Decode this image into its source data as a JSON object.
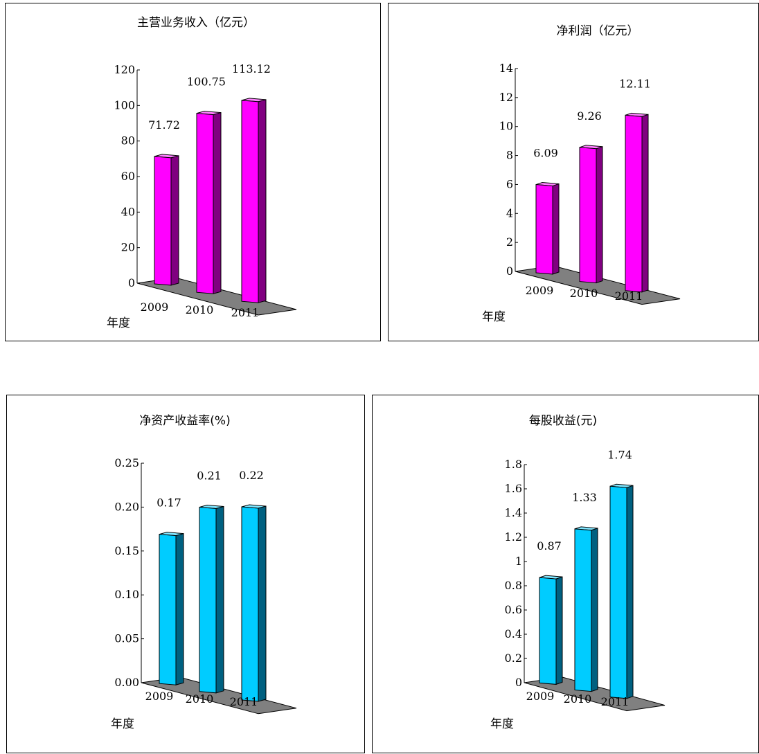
{
  "chart_data": [
    {
      "type": "bar",
      "title": "主营业务收入（亿元）",
      "xlabel": "年度",
      "ylabel": "",
      "categories": [
        "2009",
        "2010",
        "2011"
      ],
      "values": [
        71.72,
        100.75,
        113.12
      ],
      "value_labels": [
        "71.72",
        "100.75",
        "113.12"
      ],
      "ylim": [
        0,
        120
      ],
      "yticks": [
        0,
        20,
        40,
        60,
        80,
        100,
        120
      ],
      "ytick_labels": [
        "0",
        "20",
        "40",
        "60",
        "80",
        "100",
        "120"
      ],
      "grid": false,
      "three_d": true,
      "colors": {
        "front": "#ff00ff",
        "side": "#800080",
        "top": "#ff80ff"
      }
    },
    {
      "type": "bar",
      "title": "净利润（亿元）",
      "xlabel": "年度",
      "ylabel": "",
      "categories": [
        "2009",
        "2010",
        "2011"
      ],
      "values": [
        6.09,
        9.26,
        12.11
      ],
      "value_labels": [
        "6.09",
        "9.26",
        "12.11"
      ],
      "ylim": [
        0,
        14
      ],
      "yticks": [
        0,
        2,
        4,
        6,
        8,
        10,
        12,
        14
      ],
      "ytick_labels": [
        "0",
        "2",
        "4",
        "6",
        "8",
        "10",
        "12",
        "14"
      ],
      "grid": false,
      "three_d": true,
      "colors": {
        "front": "#ff00ff",
        "side": "#800080",
        "top": "#ff80ff"
      }
    },
    {
      "type": "bar",
      "title": "净资产收益率(%)",
      "xlabel": "年度",
      "ylabel": "",
      "categories": [
        "2009",
        "2010",
        "2011"
      ],
      "values": [
        0.17,
        0.21,
        0.22
      ],
      "value_labels": [
        "0.17",
        "0.21",
        "0.22"
      ],
      "ylim": [
        0,
        0.25
      ],
      "yticks": [
        0,
        0.05,
        0.1,
        0.15,
        0.2,
        0.25
      ],
      "ytick_labels": [
        "0.00",
        "0.05",
        "0.10",
        "0.15",
        "0.20",
        "0.25"
      ],
      "grid": false,
      "three_d": true,
      "colors": {
        "front": "#00ccff",
        "side": "#006080",
        "top": "#80e6ff"
      }
    },
    {
      "type": "bar",
      "title": "每股收益(元)",
      "xlabel": "年度",
      "ylabel": "",
      "categories": [
        "2009",
        "2010",
        "2011"
      ],
      "values": [
        0.87,
        1.33,
        1.74
      ],
      "value_labels": [
        "0.87",
        "1.33",
        "1.74"
      ],
      "ylim": [
        0,
        1.8
      ],
      "yticks": [
        0,
        0.2,
        0.4,
        0.6,
        0.8,
        1,
        1.2,
        1.4,
        1.6,
        1.8
      ],
      "ytick_labels": [
        "0",
        "0.2",
        "0.4",
        "0.6",
        "0.8",
        "1",
        "1.2",
        "1.4",
        "1.6",
        "1.8"
      ],
      "grid": false,
      "three_d": true,
      "colors": {
        "front": "#00ccff",
        "side": "#006080",
        "top": "#80e6ff"
      }
    }
  ]
}
